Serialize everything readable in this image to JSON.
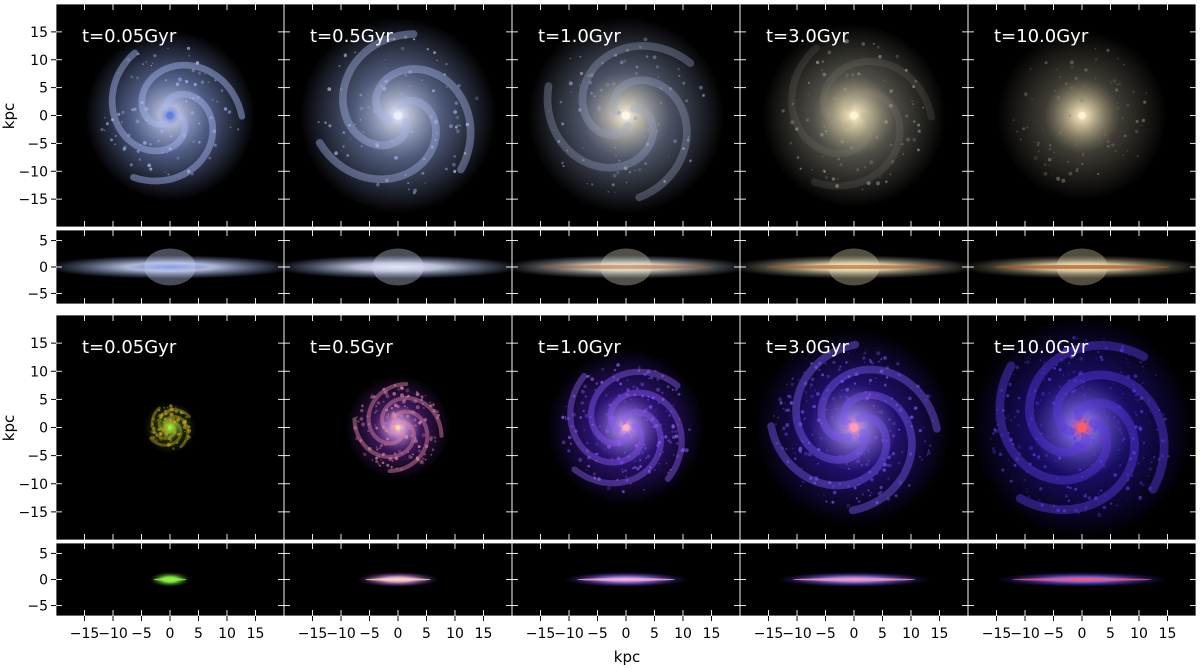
{
  "figure": {
    "x_axis_label": "kpc",
    "y_axis_label": "kpc",
    "x_ticks": [
      -15,
      -10,
      -5,
      0,
      5,
      10,
      15
    ],
    "face_on_y_ticks": [
      15,
      10,
      5,
      0,
      -5,
      -10,
      -15
    ],
    "edge_on_y_ticks": [
      5,
      0,
      -5
    ],
    "face_on_range_kpc": [
      -20,
      20
    ],
    "edge_on_range_kpc": [
      -7,
      7
    ],
    "panel_label_color": "#ffffff",
    "panel_background": "#000000",
    "blocks": [
      {
        "name": "stellar",
        "panels": [
          {
            "label": "t=0.05Gyr",
            "core": "#5f7fe0",
            "halo": "#8fa6ee",
            "arms": "#a8baf5",
            "tint": "#cfd8fb",
            "radius_kpc": 13,
            "arm_strength": 1.0
          },
          {
            "label": "t=0.5Gyr",
            "core": "#e9eefc",
            "halo": "#8ea3dc",
            "arms": "#a7b6e8",
            "tint": "#d6def7",
            "radius_kpc": 15,
            "arm_strength": 0.9
          },
          {
            "label": "t=1.0Gyr",
            "core": "#fbf6e6",
            "halo": "#8b97b8",
            "arms": "#9aa6c6",
            "tint": "#e8e2cf",
            "radius_kpc": 15,
            "arm_strength": 0.75
          },
          {
            "label": "t=3.0Gyr",
            "core": "#fff3cf",
            "halo": "#8e8c80",
            "arms": "#9a978a",
            "tint": "#efe2b8",
            "radius_kpc": 14,
            "arm_strength": 0.35
          },
          {
            "label": "t=10.0Gyr",
            "core": "#fff2d0",
            "halo": "#6e6a5c",
            "arms": "#777060",
            "tint": "#e8d9ae",
            "radius_kpc": 13,
            "arm_strength": 0.0
          }
        ]
      },
      {
        "name": "gas",
        "panels": [
          {
            "label": "t=0.05Gyr",
            "core": "#7cff3c",
            "halo": "#2f5c10",
            "arms": "#c8a020",
            "tint": "#9aff50",
            "radius_kpc": 4,
            "arm_strength": 1.0
          },
          {
            "label": "t=0.5Gyr",
            "core": "#ffd9a0",
            "halo": "#6a2aa0",
            "arms": "#e08aa8",
            "tint": "#f0b0ff",
            "radius_kpc": 8,
            "arm_strength": 1.0
          },
          {
            "label": "t=1.0Gyr",
            "core": "#ffb0c8",
            "halo": "#4a22c8",
            "arms": "#8a5cf0",
            "tint": "#b08cff",
            "radius_kpc": 12,
            "arm_strength": 1.0
          },
          {
            "label": "t=3.0Gyr",
            "core": "#ff9ab8",
            "halo": "#3a1cc0",
            "arms": "#7a58f0",
            "tint": "#a88cff",
            "radius_kpc": 15,
            "arm_strength": 1.0
          },
          {
            "label": "t=10.0Gyr",
            "core": "#ff5a6a",
            "halo": "#2a18b0",
            "arms": "#5a3ae0",
            "tint": "#8a70ff",
            "radius_kpc": 17,
            "arm_strength": 1.0
          }
        ]
      }
    ]
  }
}
